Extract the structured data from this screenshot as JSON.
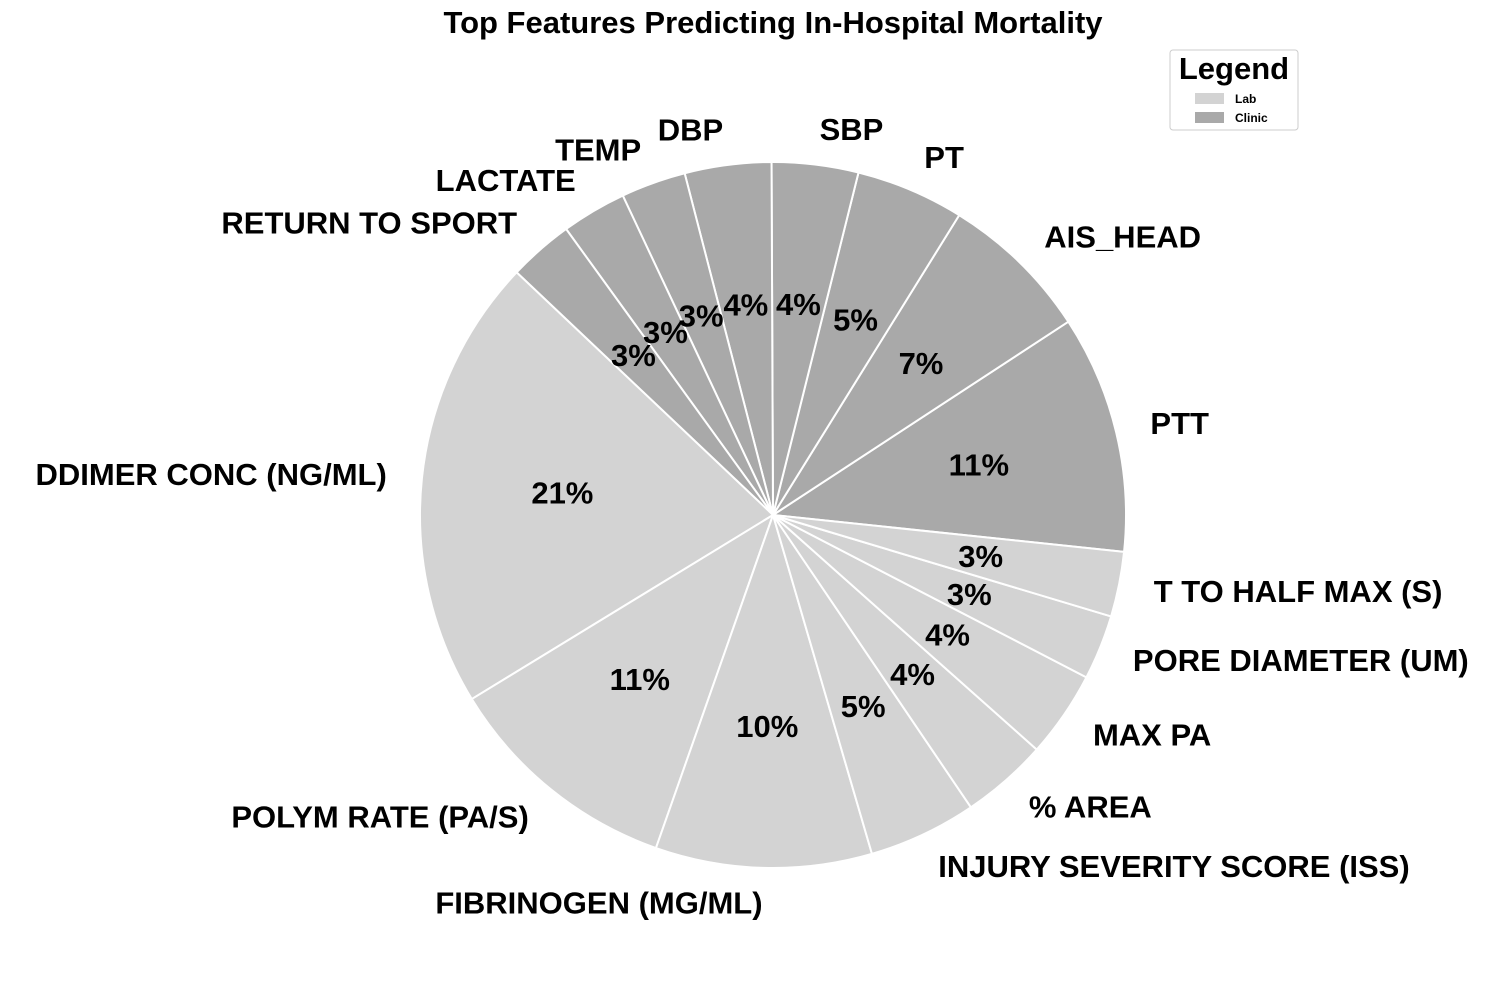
{
  "chart_data": {
    "type": "pie",
    "title": "Top Features Predicting In-Hospital Mortality",
    "slices": [
      {
        "label": "PTT",
        "value": 11,
        "pct_label": "11%",
        "group": "Clinic"
      },
      {
        "label": "AIS_HEAD",
        "value": 7,
        "pct_label": "7%",
        "group": "Clinic"
      },
      {
        "label": "PT",
        "value": 5,
        "pct_label": "5%",
        "group": "Clinic"
      },
      {
        "label": "SBP",
        "value": 4,
        "pct_label": "4%",
        "group": "Clinic"
      },
      {
        "label": "DBP",
        "value": 4,
        "pct_label": "4%",
        "group": "Clinic"
      },
      {
        "label": "TEMP",
        "value": 3,
        "pct_label": "3%",
        "group": "Clinic"
      },
      {
        "label": "LACTATE",
        "value": 3,
        "pct_label": "3%",
        "group": "Clinic"
      },
      {
        "label": "RETURN TO SPORT",
        "value": 3,
        "pct_label": "3%",
        "group": "Clinic"
      },
      {
        "label": "DDIMER CONC (NG/ML)",
        "value": 21,
        "pct_label": "21%",
        "group": "Lab"
      },
      {
        "label": "POLYM RATE (PA/S)",
        "value": 11,
        "pct_label": "11%",
        "group": "Lab"
      },
      {
        "label": "FIBRINOGEN (MG/ML)",
        "value": 10,
        "pct_label": "10%",
        "group": "Lab"
      },
      {
        "label": "INJURY SEVERITY SCORE (ISS)",
        "value": 5,
        "pct_label": "5%",
        "group": "Lab"
      },
      {
        "label": "% AREA",
        "value": 4,
        "pct_label": "4%",
        "group": "Lab"
      },
      {
        "label": "MAX PA",
        "value": 4,
        "pct_label": "4%",
        "group": "Lab"
      },
      {
        "label": "PORE DIAMETER (UM)",
        "value": 3,
        "pct_label": "3%",
        "group": "Lab"
      },
      {
        "label": "T TO HALF MAX (S)",
        "value": 3,
        "pct_label": "3%",
        "group": "Lab"
      }
    ],
    "legend": {
      "title": "Legend",
      "placement": "top-right",
      "entries": [
        {
          "name": "Lab",
          "color": "#d3d3d3"
        },
        {
          "name": "Clinic",
          "color": "#a9a9a9"
        }
      ]
    },
    "colors": {
      "Lab": "#d3d3d3",
      "Clinic": "#a9a9a9",
      "edge": "#ffffff"
    }
  }
}
